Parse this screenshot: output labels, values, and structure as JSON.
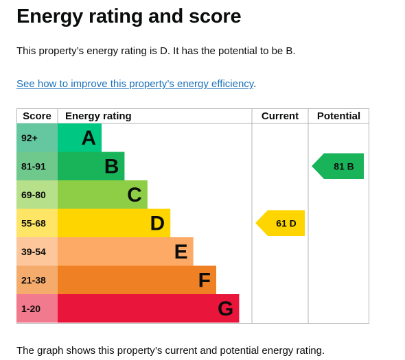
{
  "heading": "Energy rating and score",
  "summary": "This property’s energy rating is D. It has the potential to be B.",
  "improve_link": "See how to improve this property’s energy efficiency",
  "improve_link_suffix": ".",
  "footer": "The graph shows this property’s current and potential energy rating.",
  "chart_data": {
    "type": "bar",
    "headers": {
      "score": "Score",
      "rating": "Energy rating",
      "current": "Current",
      "potential": "Potential"
    },
    "bands": [
      {
        "band": "A",
        "range": "92+",
        "color": "#00c781",
        "score_color": "#64c7a0"
      },
      {
        "band": "B",
        "range": "81-91",
        "color": "#19b459",
        "score_color": "#6fc88c"
      },
      {
        "band": "C",
        "range": "69-80",
        "color": "#8dce46",
        "score_color": "#b7e08a"
      },
      {
        "band": "D",
        "range": "55-68",
        "color": "#ffd500",
        "score_color": "#ffe566"
      },
      {
        "band": "E",
        "range": "39-54",
        "color": "#fcaa65",
        "score_color": "#fdc79b"
      },
      {
        "band": "F",
        "range": "21-38",
        "color": "#ef8023",
        "score_color": "#f5ab6b"
      },
      {
        "band": "G",
        "range": "1-20",
        "color": "#e9153b",
        "score_color": "#f27a8e"
      }
    ],
    "current": {
      "score": 61,
      "band": "D",
      "label": "61 D",
      "color": "#ffd500"
    },
    "potential": {
      "score": 81,
      "band": "B",
      "label": "81 B",
      "color": "#19b459"
    }
  }
}
